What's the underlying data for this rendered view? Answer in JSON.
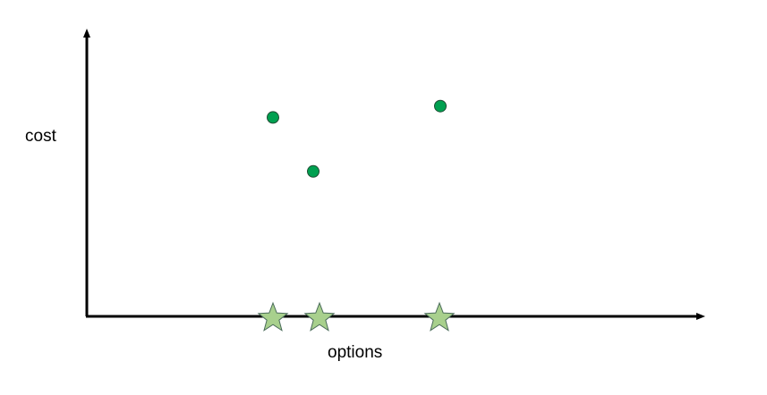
{
  "axes": {
    "y_label": "cost",
    "x_label": "options"
  },
  "colors": {
    "axis": "#000000",
    "point_fill": "#00a050",
    "point_stroke": "#1f4d34",
    "star_fill": "#a8d08d",
    "star_stroke": "#4a6b5a"
  },
  "points": [
    {
      "option": 1,
      "cost": 0.7
    },
    {
      "option": 2,
      "cost": 0.51
    },
    {
      "option": 3,
      "cost": 0.74
    }
  ],
  "stars": [
    {
      "option": 1
    },
    {
      "option": 2
    },
    {
      "option": 3
    }
  ]
}
